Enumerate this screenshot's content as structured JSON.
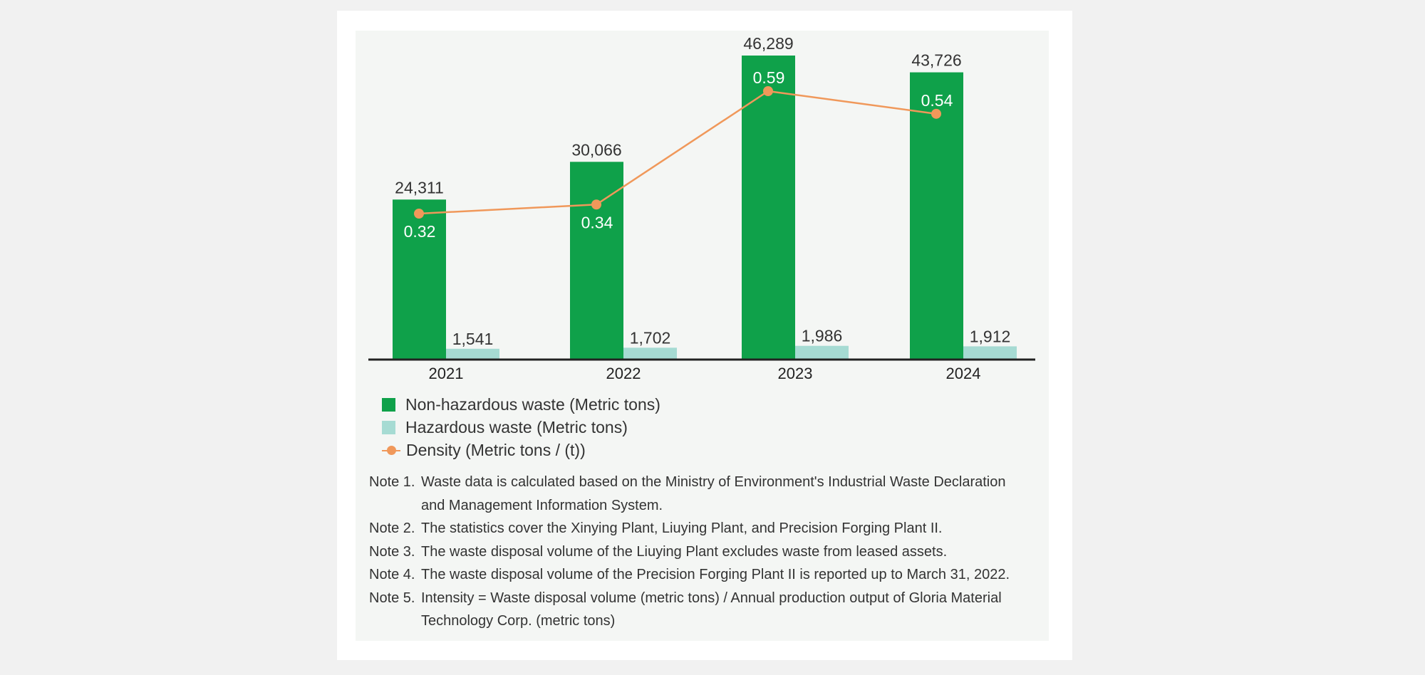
{
  "chart_data": {
    "type": "bar",
    "categories": [
      "2021",
      "2022",
      "2023",
      "2024"
    ],
    "series": [
      {
        "name": "Non-hazardous waste (Metric tons)",
        "type": "bar",
        "color": "#0fa14a",
        "values": [
          24311,
          30066,
          46289,
          43726
        ],
        "labels": [
          "24,311",
          "30,066",
          "46,289",
          "43,726"
        ]
      },
      {
        "name": "Hazardous waste (Metric tons)",
        "type": "bar",
        "color": "#a6dbd3",
        "values": [
          1541,
          1702,
          1986,
          1912
        ],
        "labels": [
          "1,541",
          "1,702",
          "1,986",
          "1,912"
        ]
      },
      {
        "name": "Density (Metric tons / (t))",
        "type": "line",
        "color": "#f0985a",
        "values": [
          0.32,
          0.34,
          0.59,
          0.54
        ],
        "labels": [
          "0.32",
          "0.34",
          "0.59",
          "0.54"
        ]
      }
    ],
    "title": "",
    "xlabel": "",
    "ylabel": "",
    "ylim": [
      0,
      48000
    ],
    "grid": false,
    "legend_position": "bottom-left"
  },
  "notes": [
    {
      "label": "Note 1.",
      "lines": [
        "Waste data is calculated based on the Ministry of Environment's Industrial Waste Declaration",
        "and Management Information System."
      ]
    },
    {
      "label": "Note 2.",
      "lines": [
        "The statistics cover the Xinying Plant, Liuying Plant, and Precision Forging Plant II."
      ]
    },
    {
      "label": "Note 3.",
      "lines": [
        "The waste disposal volume of the Liuying Plant excludes waste from leased assets."
      ]
    },
    {
      "label": "Note 4.",
      "lines": [
        "The waste disposal volume of the Precision Forging Plant II is reported up to March 31, 2022."
      ]
    },
    {
      "label": "Note 5.",
      "lines": [
        "Intensity = Waste disposal volume (metric tons) / Annual production output of Gloria Material",
        "Technology Corp. (metric tons)"
      ]
    }
  ]
}
